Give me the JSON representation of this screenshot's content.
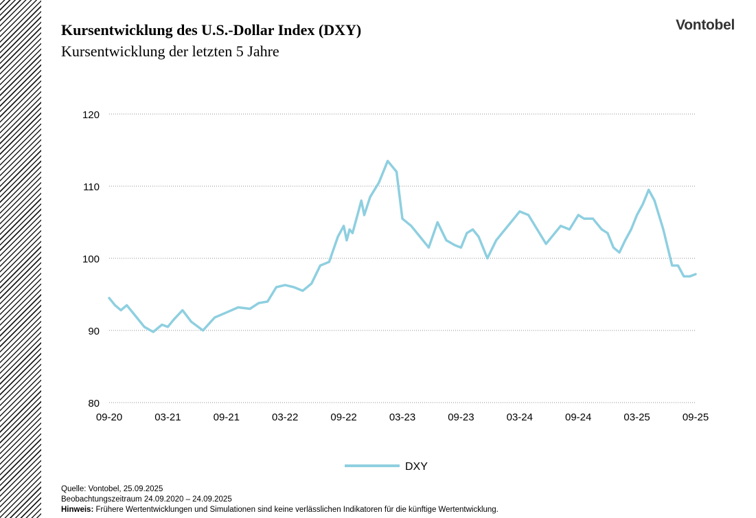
{
  "header": {
    "title": "Kursentwicklung des U.S.-Dollar Index (DXY)",
    "subtitle": "Kursentwicklung der letzten 5 Jahre",
    "logo": "Vontobel"
  },
  "footer": {
    "source": "Quelle: Vontobel, 25.09.2025",
    "period": "Beobachtungszeitraum  24.09.2020 – 24.09.2025",
    "note_label": "Hinweis:",
    "note_text": " Frühere Wertentwicklungen und Simulationen sind keine verlässlichen Indikatoren für die künftige Wertentwicklung."
  },
  "colors": {
    "series": "#8ecfe0",
    "grid": "#8c8c8c",
    "stripes": "#1a1a1a"
  },
  "chart_data": {
    "type": "line",
    "title": "",
    "xlabel": "",
    "ylabel": "",
    "ylim": [
      80,
      120
    ],
    "yticks": [
      80,
      90,
      100,
      110,
      120
    ],
    "xticks": [
      "09-20",
      "03-21",
      "09-21",
      "03-22",
      "09-22",
      "03-23",
      "09-23",
      "03-24",
      "09-24",
      "03-25",
      "09-25"
    ],
    "grid": "horizontal dotted",
    "legend": "bottom-center",
    "series": [
      {
        "name": "DXY",
        "x": [
          0,
          0.1,
          0.2,
          0.3,
          0.45,
          0.6,
          0.75,
          0.9,
          1.0,
          1.1,
          1.25,
          1.4,
          1.6,
          1.8,
          2.0,
          2.2,
          2.4,
          2.55,
          2.7,
          2.85,
          3.0,
          3.15,
          3.3,
          3.45,
          3.6,
          3.75,
          3.9,
          4.0,
          4.05,
          4.1,
          4.15,
          4.2,
          4.25,
          4.3,
          4.35,
          4.45,
          4.6,
          4.75,
          4.9,
          5.0,
          5.15,
          5.3,
          5.45,
          5.6,
          5.75,
          5.9,
          6.0,
          6.1,
          6.2,
          6.3,
          6.45,
          6.6,
          6.75,
          6.9,
          7.0,
          7.15,
          7.3,
          7.45,
          7.6,
          7.7,
          7.85,
          8.0,
          8.1,
          8.25,
          8.4,
          8.5,
          8.6,
          8.7,
          8.8,
          8.9,
          9.0,
          9.1,
          9.2,
          9.3,
          9.45,
          9.6,
          9.7,
          9.8,
          9.9,
          10.0
        ],
        "values": [
          94.5,
          93.5,
          92.8,
          93.5,
          92.0,
          90.5,
          89.8,
          90.8,
          90.5,
          91.5,
          92.8,
          91.2,
          90.0,
          91.8,
          92.5,
          93.2,
          93.0,
          93.8,
          94.0,
          96.0,
          96.3,
          96.0,
          95.5,
          96.5,
          99.0,
          99.5,
          103.0,
          104.5,
          102.5,
          104.0,
          103.5,
          105.0,
          106.5,
          108.0,
          106.0,
          108.5,
          110.5,
          113.5,
          112.0,
          105.5,
          104.5,
          103.0,
          101.5,
          105.0,
          102.5,
          101.8,
          101.5,
          103.5,
          104.0,
          103.0,
          100.0,
          102.5,
          104.0,
          105.5,
          106.5,
          106.0,
          104.0,
          102.0,
          103.5,
          104.5,
          104.0,
          106.0,
          105.5,
          105.5,
          104.0,
          103.5,
          101.5,
          100.8,
          102.5,
          104.0,
          106.0,
          107.5,
          109.5,
          108.0,
          104.0,
          99.0,
          99.0,
          97.5,
          97.5,
          97.8
        ]
      }
    ]
  }
}
